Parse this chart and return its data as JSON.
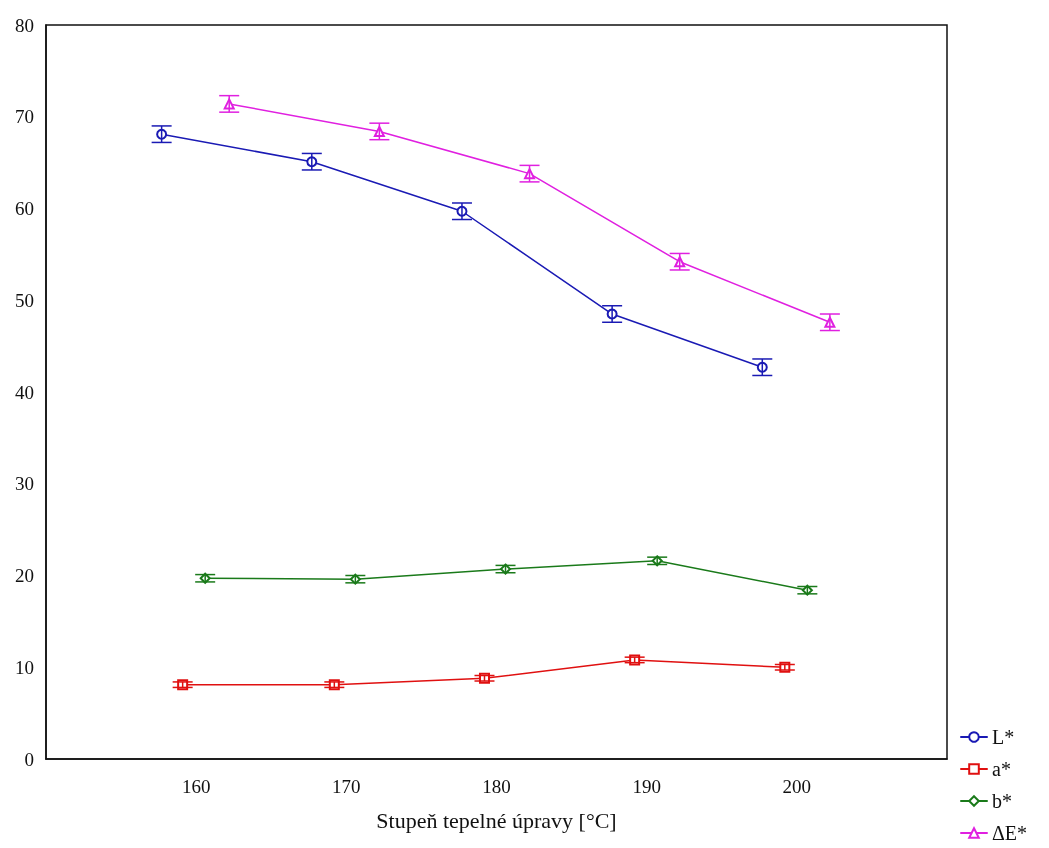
{
  "chart_data": {
    "type": "line",
    "xlabel": "Stupeň tepelné úpravy [°C]",
    "xlim": [
      150,
      210
    ],
    "xticks": [
      160,
      170,
      180,
      190,
      200
    ],
    "ylim": [
      0,
      80
    ],
    "yticks": [
      0,
      10,
      20,
      30,
      40,
      50,
      60,
      70,
      80
    ],
    "grid": false,
    "legend": "bottom right",
    "line_style": "solid",
    "series": [
      {
        "name": "L*",
        "color": "#1a1ab4",
        "marker": "circle",
        "x": [
          157.7,
          167.7,
          177.7,
          187.7,
          197.7
        ],
        "values": [
          68.1,
          65.1,
          59.7,
          48.5,
          42.7
        ],
        "errors": [
          0.9,
          0.9,
          0.9,
          0.9,
          0.9
        ]
      },
      {
        "name": "a*",
        "color": "#e01010",
        "marker": "square",
        "x": [
          159.1,
          169.2,
          179.2,
          189.2,
          199.2
        ],
        "values": [
          8.1,
          8.1,
          8.8,
          10.8,
          10.0
        ],
        "errors": [
          0.3,
          0.3,
          0.3,
          0.3,
          0.3
        ]
      },
      {
        "name": "b*",
        "color": "#1a7a1a",
        "marker": "diamond",
        "x": [
          160.6,
          170.6,
          180.6,
          190.7,
          200.7
        ],
        "values": [
          19.7,
          19.6,
          20.7,
          21.6,
          18.4
        ],
        "errors": [
          0.4,
          0.4,
          0.4,
          0.4,
          0.4
        ]
      },
      {
        "name": "ΔE*",
        "color": "#e020e0",
        "marker": "triangle",
        "x": [
          162.2,
          172.2,
          182.2,
          192.2,
          202.2
        ],
        "values": [
          71.4,
          68.4,
          63.8,
          54.2,
          47.6
        ],
        "errors": [
          0.9,
          0.9,
          0.9,
          0.9,
          0.9
        ]
      }
    ]
  }
}
